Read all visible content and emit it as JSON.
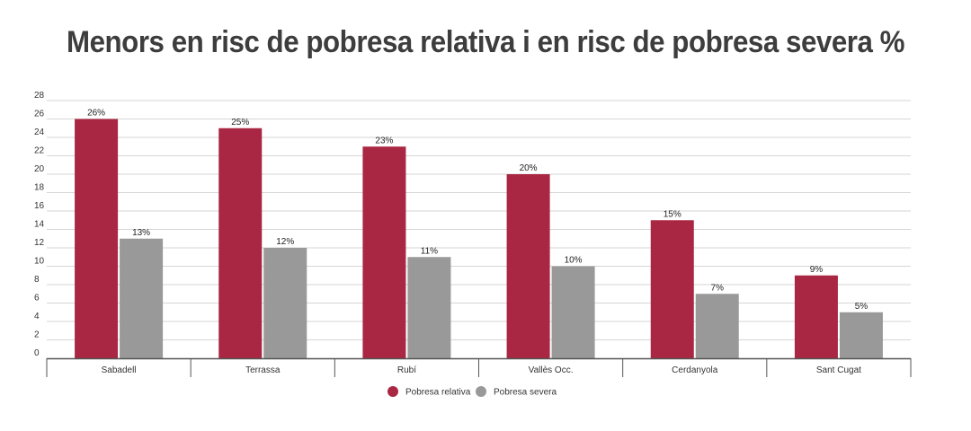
{
  "chart_data": {
    "type": "bar",
    "title": "Menors en risc de pobresa relativa i en risc de pobresa severa %",
    "categories": [
      "Sabadell",
      "Terrassa",
      "Rubí",
      "Vallès Occ.",
      "Cerdanyola",
      "Sant Cugat"
    ],
    "series": [
      {
        "name": "Pobresa relativa",
        "color": "#a92742",
        "values": [
          26,
          25,
          23,
          20,
          15,
          9
        ],
        "labels": [
          "26%",
          "25%",
          "23%",
          "20%",
          "15%",
          "9%"
        ]
      },
      {
        "name": "Pobresa severa",
        "color": "#999999",
        "values": [
          13,
          12,
          11,
          10,
          7,
          5
        ],
        "labels": [
          "13%",
          "12%",
          "11%",
          "10%",
          "7%",
          "5%"
        ]
      }
    ],
    "ylim": [
      0,
      28
    ],
    "yticks": [
      0,
      2,
      4,
      6,
      8,
      10,
      12,
      14,
      16,
      18,
      20,
      22,
      24,
      26,
      28
    ],
    "xlabel": "",
    "ylabel": "",
    "grid": true,
    "legend_position": "bottom-center"
  }
}
